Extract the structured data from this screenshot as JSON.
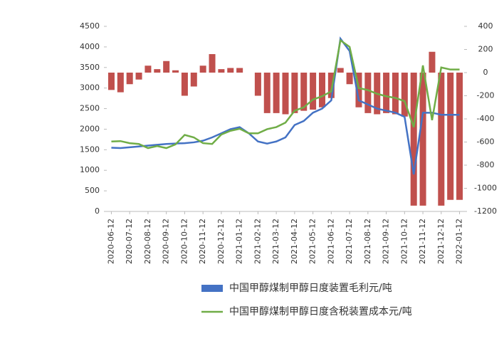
{
  "chart_data": {
    "type": "bar-line",
    "categories": [
      "2020-06-12",
      null,
      "2020-07-12",
      null,
      "2020-08-12",
      null,
      "2020-09-12",
      null,
      "2020-10-12",
      null,
      "2020-11-12",
      null,
      "2020-12-12",
      null,
      "2021-01-12",
      null,
      "2021-02-12",
      null,
      "2021-03-12",
      null,
      "2021-04-12",
      null,
      "2021-05-12",
      null,
      "2021-06-12",
      null,
      "2021-07-12",
      null,
      "2021-08-12",
      null,
      "2021-09-12",
      null,
      "2021-10-12",
      null,
      "2021-11-12",
      null,
      "2021-12-12",
      null,
      "2022-01-12"
    ],
    "series": [
      {
        "color": "#c0504d",
        "axis": "y2",
        "kind": "bar",
        "values": [
          -150,
          -170,
          -100,
          -60,
          60,
          30,
          100,
          20,
          -200,
          -120,
          60,
          160,
          30,
          40,
          40,
          0,
          -200,
          -350,
          -350,
          -360,
          -350,
          -330,
          -320,
          -300,
          -220,
          40,
          -100,
          -300,
          -350,
          -360,
          -350,
          -360,
          -380,
          -1150,
          -1150,
          180,
          -1150,
          -1100,
          -1100
        ]
      },
      {
        "name": "中国甲醇煤制甲醇日度装置毛利元/吨",
        "color": "#4472c4",
        "kind": "line",
        "values": [
          1550,
          1540,
          1560,
          1580,
          1600,
          1620,
          1640,
          1650,
          1660,
          1680,
          1720,
          1800,
          1900,
          2000,
          2050,
          1900,
          1700,
          1650,
          1700,
          1800,
          2100,
          2200,
          2400,
          2500,
          2700,
          4200,
          3900,
          2700,
          2600,
          2500,
          2450,
          2400,
          2300,
          900,
          2400,
          2400,
          2350,
          2350,
          2350
        ]
      },
      {
        "name": "中国甲醇煤制甲醇日度含税装置成本元/吨",
        "color": "#70ad47",
        "kind": "line",
        "values": [
          1700,
          1710,
          1660,
          1640,
          1540,
          1590,
          1540,
          1630,
          1860,
          1800,
          1660,
          1640,
          1870,
          1960,
          2010,
          1900,
          1900,
          2000,
          2050,
          2160,
          2450,
          2530,
          2720,
          2800,
          2920,
          4160,
          4000,
          3000,
          2950,
          2860,
          2800,
          2760,
          2680,
          2050,
          3550,
          2220,
          3500,
          3450,
          3450
        ]
      }
    ],
    "ylim": [
      0,
      4500
    ],
    "yticks": [
      0,
      500,
      1000,
      1500,
      2000,
      2500,
      3000,
      3500,
      4000,
      4500
    ],
    "y2lim": [
      -1200,
      400
    ],
    "y2ticks": [
      -1200,
      -1000,
      -800,
      -600,
      -400,
      -200,
      0,
      200,
      400
    ],
    "grid": false,
    "legend": "bottom"
  }
}
